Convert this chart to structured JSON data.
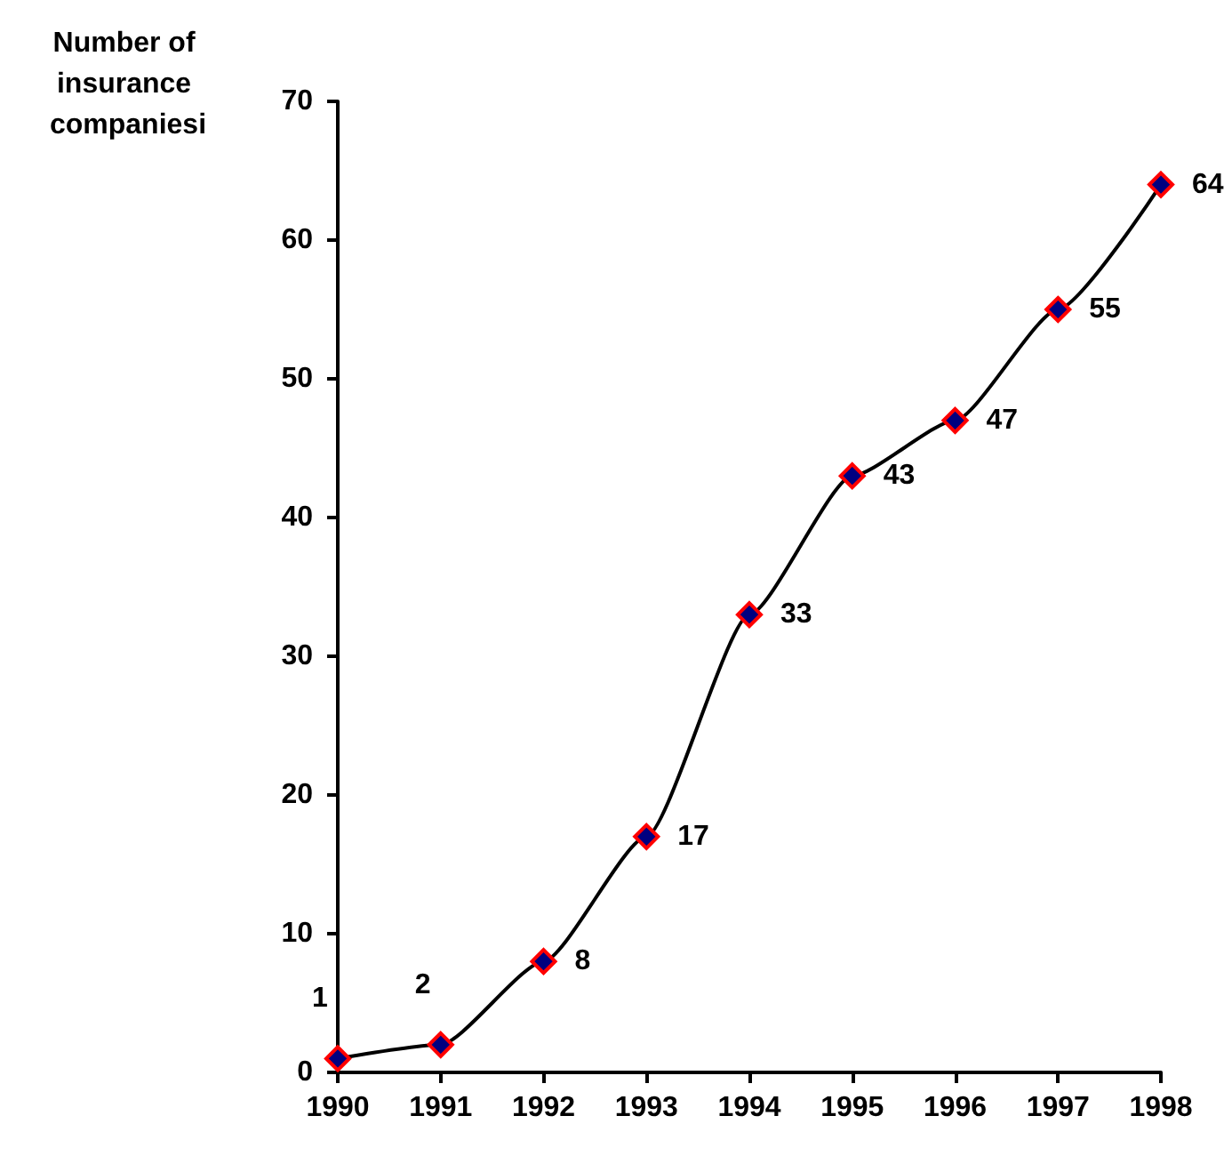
{
  "chart_data": {
    "type": "line",
    "ylabel": "Number of insurance companiesi",
    "categories": [
      "1990",
      "1991",
      "1992",
      "1993",
      "1994",
      "1995",
      "1996",
      "1997",
      "1998"
    ],
    "series": [
      {
        "color": "#000000",
        "values": [
          1,
          2,
          8,
          17,
          33,
          43,
          47,
          55,
          64
        ]
      }
    ],
    "ylim": [
      0,
      70
    ],
    "yticks": [
      0,
      10,
      20,
      30,
      40,
      50,
      60,
      70
    ],
    "grid": false,
    "marker": "diamond",
    "data_labels": true
  }
}
